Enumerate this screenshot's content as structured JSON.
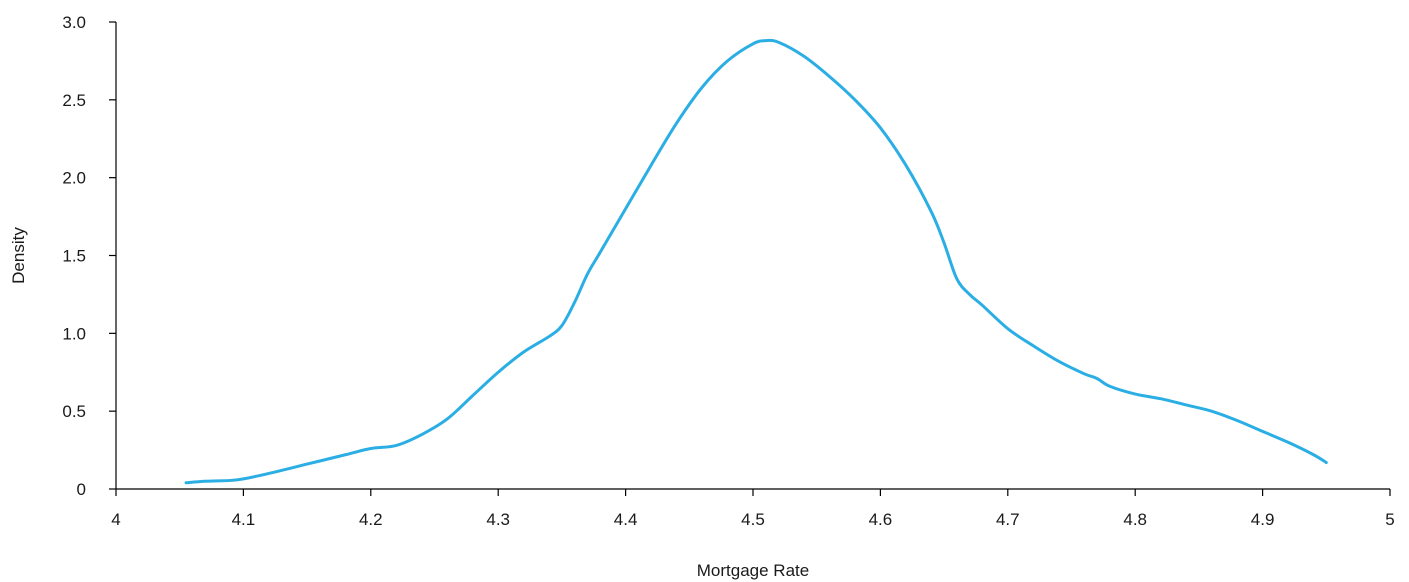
{
  "chart_data": {
    "type": "line",
    "title": "",
    "xlabel": "Mortgage Rate",
    "ylabel": "Density",
    "xlim": [
      4,
      5
    ],
    "ylim": [
      0,
      3.0
    ],
    "x_ticks": [
      4,
      4.1,
      4.2,
      4.3,
      4.4,
      4.5,
      4.6,
      4.7,
      4.8,
      4.9,
      5
    ],
    "x_tick_labels": [
      "4",
      "4.1",
      "4.2",
      "4.3",
      "4.4",
      "4.5",
      "4.6",
      "4.7",
      "4.8",
      "4.9",
      "5"
    ],
    "y_ticks": [
      0,
      0.5,
      1.0,
      1.5,
      2.0,
      2.5,
      3.0
    ],
    "y_tick_labels": [
      "0",
      "0.5",
      "1.0",
      "1.5",
      "2.0",
      "2.5",
      "3.0"
    ],
    "grid": false,
    "legend": "none",
    "series": [
      {
        "color": "#2aaee4",
        "x": [
          4.055,
          4.07,
          4.09,
          4.1,
          4.12,
          4.15,
          4.18,
          4.2,
          4.22,
          4.24,
          4.26,
          4.28,
          4.3,
          4.32,
          4.34,
          4.35,
          4.36,
          4.37,
          4.38,
          4.4,
          4.42,
          4.44,
          4.46,
          4.48,
          4.5,
          4.51,
          4.52,
          4.54,
          4.56,
          4.58,
          4.6,
          4.62,
          4.64,
          4.65,
          4.66,
          4.67,
          4.68,
          4.7,
          4.72,
          4.74,
          4.76,
          4.77,
          4.78,
          4.8,
          4.82,
          4.84,
          4.86,
          4.88,
          4.9,
          4.92,
          4.94,
          4.95
        ],
        "y": [
          0.04,
          0.05,
          0.055,
          0.065,
          0.1,
          0.16,
          0.22,
          0.26,
          0.28,
          0.35,
          0.45,
          0.6,
          0.75,
          0.88,
          0.98,
          1.05,
          1.2,
          1.38,
          1.52,
          1.8,
          2.08,
          2.35,
          2.58,
          2.75,
          2.86,
          2.88,
          2.87,
          2.78,
          2.65,
          2.5,
          2.32,
          2.08,
          1.78,
          1.58,
          1.35,
          1.25,
          1.18,
          1.03,
          0.92,
          0.82,
          0.74,
          0.71,
          0.66,
          0.61,
          0.58,
          0.54,
          0.5,
          0.44,
          0.37,
          0.3,
          0.22,
          0.17
        ]
      }
    ]
  }
}
